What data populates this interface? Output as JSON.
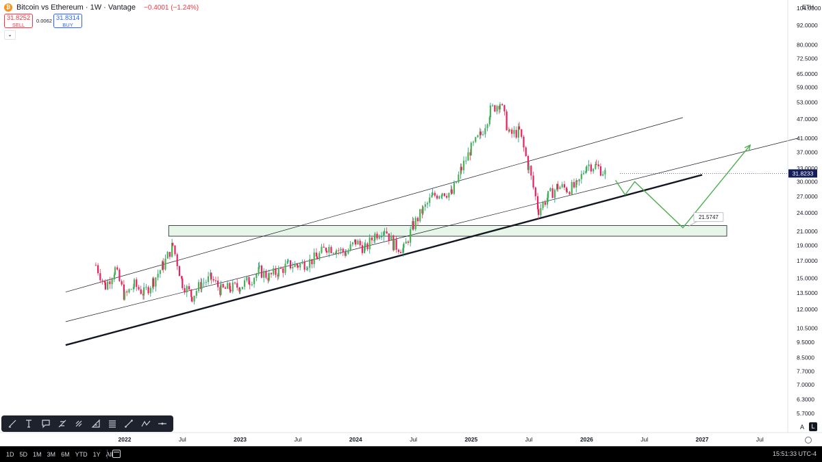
{
  "header": {
    "logo_glyph": "₿",
    "title": "Bitcoin vs Ethereum · 1W · Vantage",
    "change": "−0.4001 (−1.24%)"
  },
  "trade": {
    "sell_price": "31.8252",
    "sell_label": "SELL",
    "spread": "0.0062",
    "buy_price": "31.8314",
    "buy_label": "BUY",
    "collapse_glyph": "⌄"
  },
  "currency": "ETH",
  "chart_data": {
    "type": "candlestick",
    "y_scale": "log",
    "ylim": [
      5.2,
      112
    ],
    "xlim": [
      "2021-09",
      "2027-11"
    ],
    "y_ticks": [
      "104.0000",
      "92.0000",
      "80.0000",
      "72.5000",
      "65.0000",
      "59.0000",
      "53.0000",
      "47.0000",
      "41.0000",
      "37.0000",
      "33.0000",
      "30.0000",
      "27.0000",
      "24.0000",
      "21.0000",
      "19.0000",
      "17.0000",
      "15.0000",
      "13.5000",
      "12.0000",
      "10.5000",
      "9.5000",
      "8.5000",
      "7.7000",
      "7.0000",
      "6.3000",
      "5.7000"
    ],
    "x_ticks": [
      "2022",
      "Jul",
      "2023",
      "Jul",
      "2024",
      "Jul",
      "2025",
      "Jul",
      "2026",
      "Jul",
      "2027",
      "Jul"
    ],
    "current_price": "31.8233",
    "candle_waypoints": [
      [
        "2021-10",
        16.5
      ],
      [
        "2021-11",
        14.2
      ],
      [
        "2021-12",
        16.0
      ],
      [
        "2022-01",
        13.2
      ],
      [
        "2022-02",
        14.3
      ],
      [
        "2022-03",
        13.5
      ],
      [
        "2022-04",
        14.8
      ],
      [
        "2022-05",
        16.5
      ],
      [
        "2022-06",
        19.0
      ],
      [
        "2022-07",
        14.5
      ],
      [
        "2022-08",
        13.2
      ],
      [
        "2022-09",
        14.5
      ],
      [
        "2022-10",
        15.0
      ],
      [
        "2022-11",
        13.8
      ],
      [
        "2022-12",
        14.0
      ],
      [
        "2023-01",
        14.2
      ],
      [
        "2023-02",
        14.8
      ],
      [
        "2023-03",
        15.8
      ],
      [
        "2023-04",
        15.2
      ],
      [
        "2023-05",
        15.8
      ],
      [
        "2023-06",
        16.5
      ],
      [
        "2023-07",
        16.5
      ],
      [
        "2023-08",
        16.8
      ],
      [
        "2023-09",
        17.5
      ],
      [
        "2023-10",
        18.8
      ],
      [
        "2023-11",
        18.5
      ],
      [
        "2023-12",
        18.0
      ],
      [
        "2024-01",
        19.5
      ],
      [
        "2024-02",
        18.5
      ],
      [
        "2024-03",
        20.5
      ],
      [
        "2024-04",
        21.5
      ],
      [
        "2024-05",
        19.0
      ],
      [
        "2024-06",
        18.5
      ],
      [
        "2024-07",
        22.0
      ],
      [
        "2024-08",
        24.5
      ],
      [
        "2024-09",
        27.0
      ],
      [
        "2024-10",
        28.0
      ],
      [
        "2024-11",
        27.5
      ],
      [
        "2024-12",
        33.0
      ],
      [
        "2025-01",
        38.0
      ],
      [
        "2025-02",
        42.0
      ],
      [
        "2025-03",
        50.0
      ],
      [
        "2025-04",
        53.0
      ],
      [
        "2025-05",
        42.0
      ],
      [
        "2025-06",
        43.0
      ],
      [
        "2025-07",
        33.0
      ],
      [
        "2025-08",
        24.5
      ],
      [
        "2025-09",
        27.0
      ],
      [
        "2025-10",
        29.0
      ],
      [
        "2025-11",
        28.5
      ],
      [
        "2025-12",
        29.0
      ],
      [
        "2026-01",
        34.0
      ],
      [
        "2026-02",
        33.5
      ],
      [
        "2026-03",
        31.82
      ]
    ],
    "channel_upper": [
      [
        "2021-09",
        13.6
      ],
      [
        "2026-11",
        47.5
      ]
    ],
    "channel_middle": [
      [
        "2021-09",
        11.0
      ],
      [
        "2027-11",
        41.0
      ]
    ],
    "support_line": [
      [
        "2021-09",
        9.3
      ],
      [
        "2027-01",
        31.5
      ]
    ],
    "support_zone": {
      "x": [
        "2022-06",
        "2027-01"
      ],
      "y": [
        20.3,
        21.9
      ]
    },
    "projection_path": [
      [
        "2026-04",
        30.3
      ],
      [
        "2026-05",
        27.3
      ],
      [
        "2026-06",
        30.0
      ],
      [
        "2026-11",
        21.57
      ],
      [
        "2027-06",
        39.0
      ]
    ],
    "target_label": "21.5747"
  },
  "toolbar": {
    "icons": [
      "brush-icon",
      "text-tool-icon",
      "callout-icon",
      "fib-icon",
      "magnet-icon",
      "ruler-icon",
      "bars-icon",
      "trendline-icon",
      "path-icon",
      "hline-icon"
    ]
  },
  "bottom": {
    "ranges": [
      "1D",
      "5D",
      "1M",
      "3M",
      "6M",
      "YTD",
      "1Y",
      "All"
    ],
    "clock": "15:51:33 UTC-4"
  },
  "scale_buttons": {
    "auto": "A",
    "log": "L"
  },
  "colors": {
    "up": "#089981",
    "down": "#f23645",
    "up_body": "#4caf50",
    "down_body": "#e91e63",
    "projection": "#4caf50",
    "zone_fill": "#e8f5e9",
    "price_tag": "#131e5b"
  }
}
